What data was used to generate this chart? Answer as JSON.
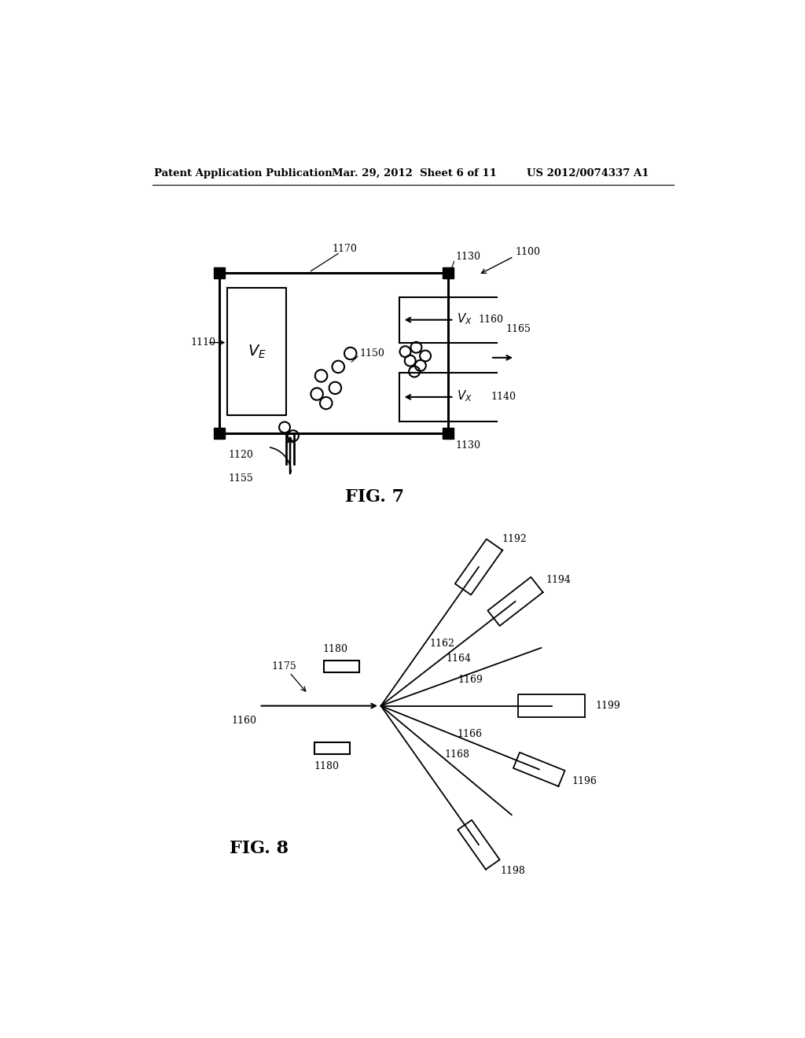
{
  "bg_color": "#ffffff",
  "header_left": "Patent Application Publication",
  "header_mid": "Mar. 29, 2012  Sheet 6 of 11",
  "header_right": "US 2012/0074337 A1"
}
